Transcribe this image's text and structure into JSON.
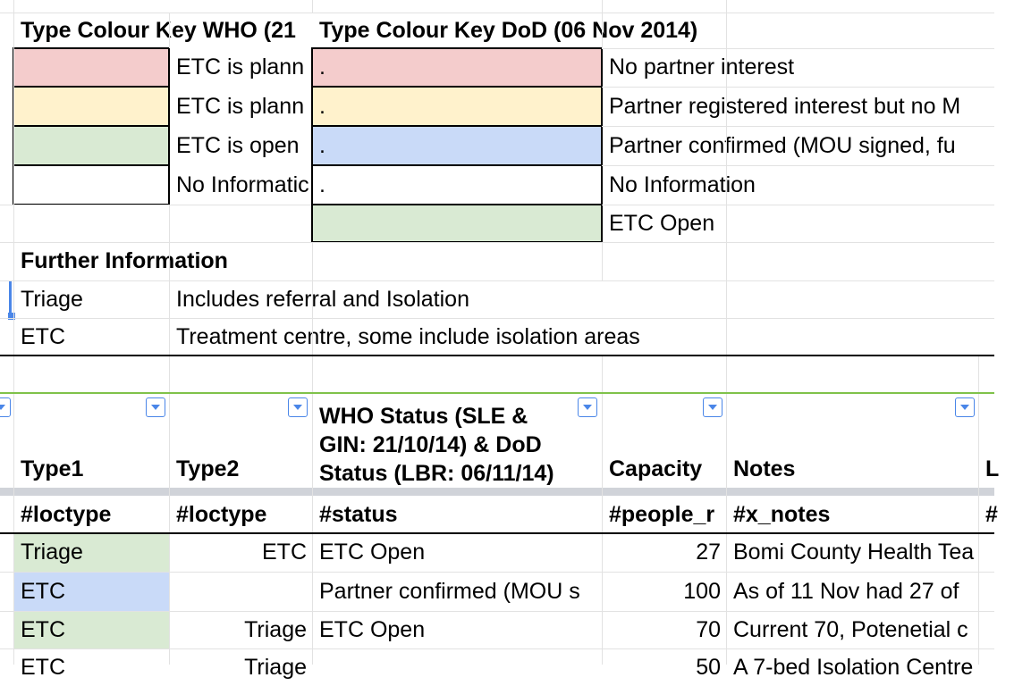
{
  "colors": {
    "red": "#f4cccc",
    "yellow": "#fff2cc",
    "green": "#d9ead3",
    "blue": "#c9daf8",
    "grid": "#e2e2e2",
    "freeze": "#d0d3d9"
  },
  "key": {
    "who_title": "Type Colour Key WHO (21",
    "dod_title": "Type Colour Key DoD (06 Nov 2014)",
    "who_rows": [
      "ETC is plann",
      "ETC is plann",
      "ETC is open",
      "No Informatic"
    ],
    "dod_dots": [
      ".",
      ".",
      ".",
      "."
    ],
    "dod_rows": [
      "No partner interest",
      "Partner registered interest but no M",
      "Partner confirmed (MOU signed, fu",
      "No Information",
      "ETC Open"
    ]
  },
  "further": {
    "title": "Further Information",
    "rows": [
      {
        "term": "Triage",
        "desc": "Includes referral and Isolation"
      },
      {
        "term": "ETC",
        "desc": "Treatment centre, some include isolation areas"
      }
    ]
  },
  "table": {
    "headers": [
      "Type1",
      "Type2",
      "WHO Status (SLE & GIN: 21/10/14) & DoD Status (LBR: 06/11/14)",
      "Capacity",
      "Notes",
      "L"
    ],
    "tags": [
      "#loctype",
      "#loctype",
      "#status",
      "#people_r",
      "#x_notes",
      "#"
    ],
    "rows": [
      {
        "type1": "Triage",
        "type2": "ETC",
        "status": "ETC Open",
        "capacity": "27",
        "notes": "Bomi County Health Tea"
      },
      {
        "type1": "ETC",
        "type2": "",
        "status": "Partner confirmed (MOU s",
        "capacity": "100",
        "notes": "As of 11 Nov had 27 of"
      },
      {
        "type1": "ETC",
        "type2": "Triage",
        "status": "ETC Open",
        "capacity": "70",
        "notes": "Current 70, Potenetial c"
      },
      {
        "type1": "ETC",
        "type2": "Triage",
        "status": "",
        "capacity": "50",
        "notes": "A 7-bed Isolation Centre"
      }
    ]
  }
}
